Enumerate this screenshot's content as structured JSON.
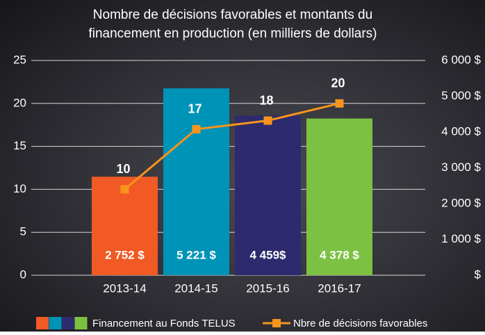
{
  "chart_data": {
    "type": "bar",
    "title": [
      "Nombre de décisions favorables et montants du",
      "financement en production (en milliers de dollars)"
    ],
    "categories": [
      "2013-14",
      "2014-15",
      "2015-16",
      "2016-17"
    ],
    "series": [
      {
        "name": "Financement au Fonds TELUS",
        "type": "bar",
        "axis": "y2",
        "colors": [
          "#f15a24",
          "#0093b8",
          "#2e2a6e",
          "#7dc142"
        ],
        "values": [
          2752,
          5221,
          4459,
          4378
        ],
        "value_labels": [
          "2 752 $",
          "5 221 $",
          "4 459$",
          "4 378 $"
        ]
      },
      {
        "name": "Nbre de décisions favorables",
        "type": "line",
        "axis": "y",
        "color": "#f7941d",
        "values": [
          10,
          17,
          18,
          20
        ]
      }
    ],
    "ylim": [
      0,
      25
    ],
    "yticks": [
      0,
      5,
      10,
      15,
      20,
      25
    ],
    "y2lim": [
      0,
      6000
    ],
    "y2ticks": [
      {
        "value": 0,
        "label": "$"
      },
      {
        "value": 1000,
        "label": "1 000 $"
      },
      {
        "value": 2000,
        "label": "2 000 $"
      },
      {
        "value": 3000,
        "label": "3 000 $"
      },
      {
        "value": 4000,
        "label": "4 000 $"
      },
      {
        "value": 5000,
        "label": "5 000 $"
      },
      {
        "value": 6000,
        "label": "6 000 $"
      }
    ],
    "grid": true
  }
}
